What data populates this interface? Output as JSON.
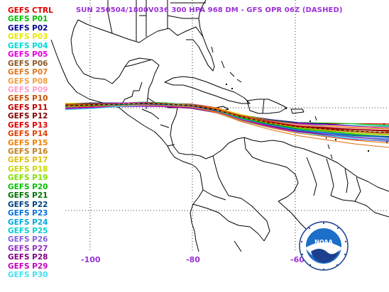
{
  "title": "SUN 250504/1800V036  300 HPA 968 DM - GFS OPR 06Z (DASHED)",
  "members": [
    {
      "name": "GEFS CTRL",
      "color": "#e00000"
    },
    {
      "name": "GEFS P01",
      "color": "#00c000"
    },
    {
      "name": "GEFS P02",
      "color": "#000090"
    },
    {
      "name": "GEFS P03",
      "color": "#e8e800"
    },
    {
      "name": "GEFS P04",
      "color": "#00d8d8"
    },
    {
      "name": "GEFS P05",
      "color": "#e000e0"
    },
    {
      "name": "GEFS P06",
      "color": "#8b5a2b"
    },
    {
      "name": "GEFS P07",
      "color": "#e07820"
    },
    {
      "name": "GEFS P08",
      "color": "#f0a040"
    },
    {
      "name": "GEFS P09",
      "color": "#ff9ec8"
    },
    {
      "name": "GEFS P10",
      "color": "#c05000"
    },
    {
      "name": "GEFS P11",
      "color": "#c00000"
    },
    {
      "name": "GEFS P12",
      "color": "#800000"
    },
    {
      "name": "GEFS P13",
      "color": "#e00000"
    },
    {
      "name": "GEFS P14",
      "color": "#e04000"
    },
    {
      "name": "GEFS P15",
      "color": "#f08000"
    },
    {
      "name": "GEFS P16",
      "color": "#c08020"
    },
    {
      "name": "GEFS P17",
      "color": "#e0c000"
    },
    {
      "name": "GEFS P18",
      "color": "#c8d800"
    },
    {
      "name": "GEFS P19",
      "color": "#80e000"
    },
    {
      "name": "GEFS P20",
      "color": "#00c000"
    },
    {
      "name": "GEFS P21",
      "color": "#007000"
    },
    {
      "name": "GEFS P22",
      "color": "#004080"
    },
    {
      "name": "GEFS P23",
      "color": "#0070e0"
    },
    {
      "name": "GEFS P24",
      "color": "#00a8e0"
    },
    {
      "name": "GEFS P25",
      "color": "#00d0d0"
    },
    {
      "name": "GEFS P26",
      "color": "#8060e0"
    },
    {
      "name": "GEFS P27",
      "color": "#9030c0"
    },
    {
      "name": "GEFS P28",
      "color": "#800080"
    },
    {
      "name": "GEFS P29",
      "color": "#c000c0"
    },
    {
      "name": "GEFS P30",
      "color": "#40e0f0"
    }
  ],
  "longitude_labels": [
    "-100",
    "-80",
    "-60"
  ],
  "logo_text": "NOAA",
  "colors": {
    "title": "#9b30d8",
    "coast": "#000000",
    "grid": "#000000"
  }
}
